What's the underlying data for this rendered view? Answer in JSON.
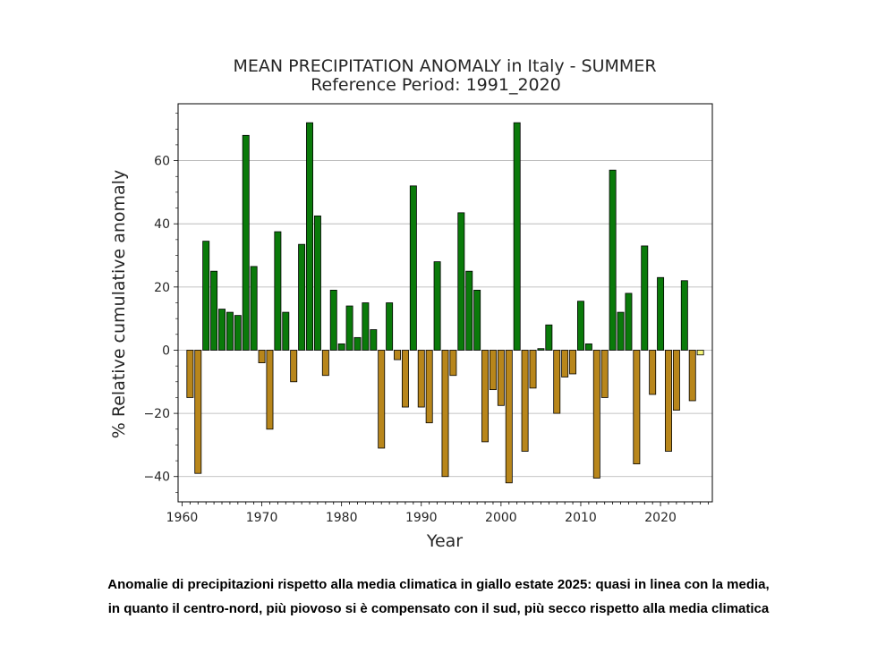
{
  "chart_data": {
    "type": "bar",
    "title": "MEAN PRECIPITATION ANOMALY in Italy - SUMMER",
    "subtitle": "Reference Period: 1991_2020",
    "xlabel": "Year",
    "ylabel": "% Relative cumulative anomaly",
    "xlim": [
      1959.5,
      2026.5
    ],
    "ylim": [
      -48,
      78
    ],
    "xticks": [
      1960,
      1970,
      1980,
      1990,
      2000,
      2010,
      2020
    ],
    "yticks": [
      -40,
      -20,
      0,
      20,
      40,
      60
    ],
    "ytick_labels": [
      "−40",
      "−20",
      "0",
      "20",
      "40",
      "60"
    ],
    "grid": "horizontal",
    "colors": {
      "positive": "#0a7a0a",
      "negative": "#b8861b",
      "highlight": "#f5f57a",
      "edge": "#000000"
    },
    "highlight_year": 2025,
    "years": [
      1961,
      1962,
      1963,
      1964,
      1965,
      1966,
      1967,
      1968,
      1969,
      1970,
      1971,
      1972,
      1973,
      1974,
      1975,
      1976,
      1977,
      1978,
      1979,
      1980,
      1981,
      1982,
      1983,
      1984,
      1985,
      1986,
      1987,
      1988,
      1989,
      1990,
      1991,
      1992,
      1993,
      1994,
      1995,
      1996,
      1997,
      1998,
      1999,
      2000,
      2001,
      2002,
      2003,
      2004,
      2005,
      2006,
      2007,
      2008,
      2009,
      2010,
      2011,
      2012,
      2013,
      2014,
      2015,
      2016,
      2017,
      2018,
      2019,
      2020,
      2021,
      2022,
      2023,
      2024,
      2025
    ],
    "values": [
      -15,
      -39,
      34.5,
      25,
      13,
      12,
      11,
      68,
      26.5,
      -4,
      -25,
      37.5,
      12,
      -10,
      33.5,
      72,
      42.5,
      -8,
      19,
      2,
      14,
      4,
      15,
      6.5,
      -31,
      15,
      -3,
      -18,
      52,
      -18,
      -23,
      28,
      -40,
      -8,
      43.5,
      25,
      19,
      -29,
      -12.5,
      -17.5,
      -42,
      72,
      -32,
      -12,
      0.5,
      8,
      -20,
      -8.5,
      -7.5,
      15.5,
      2,
      -40.5,
      -15,
      57,
      12,
      18,
      -36,
      33,
      -14,
      23,
      -32,
      -19,
      22,
      -16,
      -1.5
    ]
  },
  "caption": {
    "line1": "Anomalie di precipitazioni rispetto alla media climatica in giallo estate 2025: quasi in linea con la media,",
    "line2": "in quanto il centro-nord, più piovoso si è compensato con il sud, più secco rispetto alla media climatica"
  }
}
